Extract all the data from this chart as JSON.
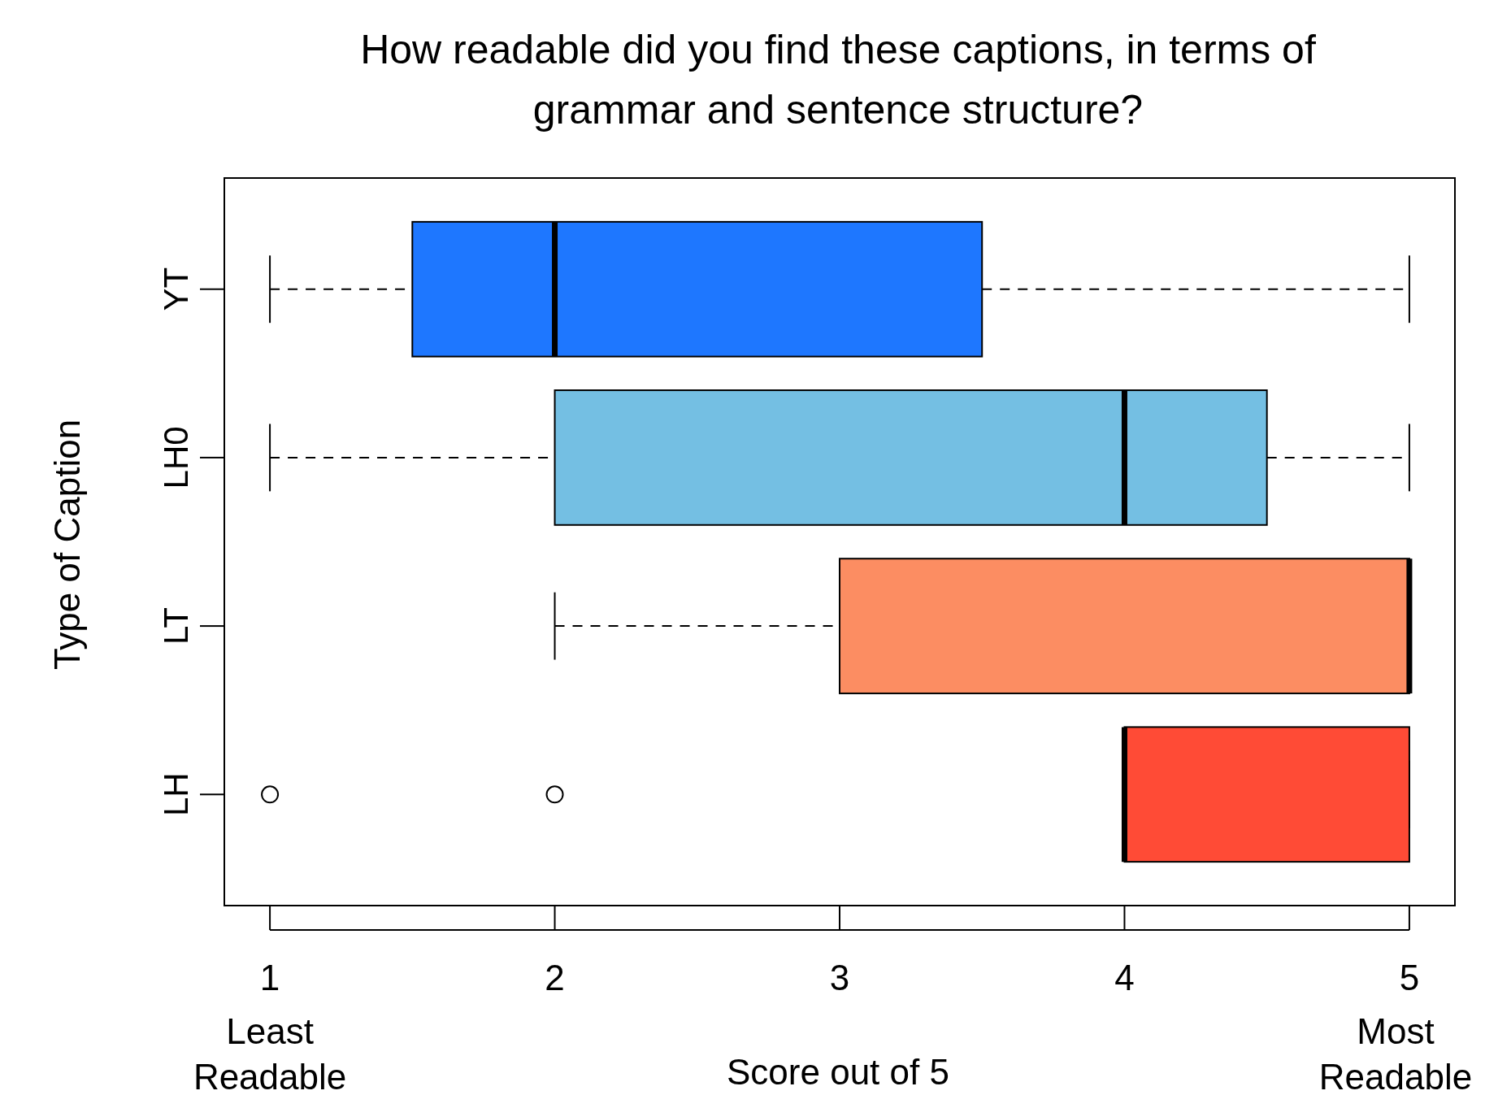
{
  "chart_data": {
    "type": "box",
    "orientation": "horizontal",
    "title": "How readable did you find these captions, in terms of grammar and sentence structure?",
    "xlabel": "Score out of 5",
    "ylabel": "Type of Caption",
    "categories": [
      "YT",
      "LH0",
      "LT",
      "LH"
    ],
    "colors": [
      "#1e77ff",
      "#74bfe3",
      "#fc8d62",
      "#ff4b36"
    ],
    "boxes": [
      {
        "low": 1,
        "q1": 1.5,
        "median": 2,
        "q3": 3.5,
        "high": 5
      },
      {
        "low": 1,
        "q1": 2,
        "median": 4,
        "q3": 4.5,
        "high": 5
      },
      {
        "low": 2,
        "q1": 3,
        "median": 5,
        "q3": 5,
        "high": 5
      },
      {
        "low": 4,
        "q1": 4,
        "median": 4,
        "q3": 5,
        "high": 5,
        "outliers": [
          1,
          2
        ]
      }
    ],
    "xlim": [
      0.84,
      5.16
    ],
    "xticks": [
      1,
      2,
      3,
      4,
      5
    ],
    "annotations": [
      "Least Readable",
      "Most Readable"
    ]
  }
}
